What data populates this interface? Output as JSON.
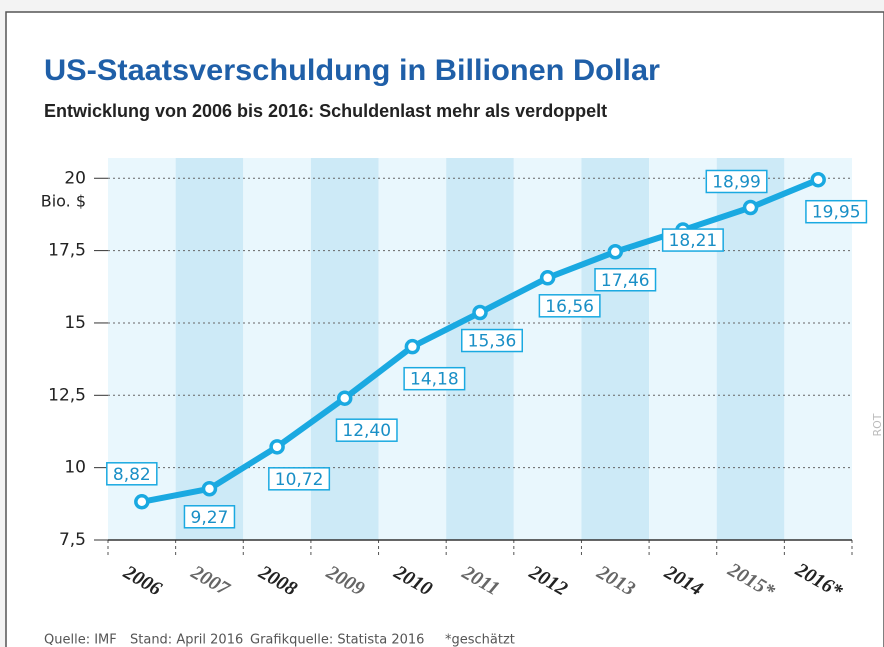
{
  "chart_data": {
    "type": "line",
    "title": "US-Staatsverschuldung in Billionen Dollar",
    "subtitle": "Entwicklung von 2006 bis 2016: Schuldenlast mehr als verdoppelt",
    "y_unit": "Bio. $",
    "categories": [
      "2006",
      "2007",
      "2008",
      "2009",
      "2010",
      "2011",
      "2012",
      "2013",
      "2014",
      "2015*",
      "2016*"
    ],
    "series": [
      {
        "name": "US-Staatsverschuldung",
        "color": "#1aa9e1",
        "values": [
          8.82,
          9.27,
          10.72,
          12.4,
          14.18,
          15.36,
          16.56,
          17.46,
          18.21,
          18.99,
          19.95
        ],
        "value_labels": [
          "8,82",
          "9,27",
          "10,72",
          "12,40",
          "14,18",
          "15,36",
          "16,56",
          "17,46",
          "18,21",
          "18,99",
          "19,95"
        ]
      }
    ],
    "ylim": [
      7.5,
      20.7
    ],
    "yticks": [
      {
        "value": 7.5,
        "label": "7,5"
      },
      10,
      {
        "value": 12.5,
        "label": "12,5"
      },
      15,
      {
        "value": 17.5,
        "label": "17,5"
      },
      20
    ],
    "grid": true,
    "footer": [
      "Quelle: IMF",
      "Stand: April 2016",
      "Grafikquelle: Statista 2016",
      "*geschätzt"
    ],
    "side_label": "ROT"
  }
}
